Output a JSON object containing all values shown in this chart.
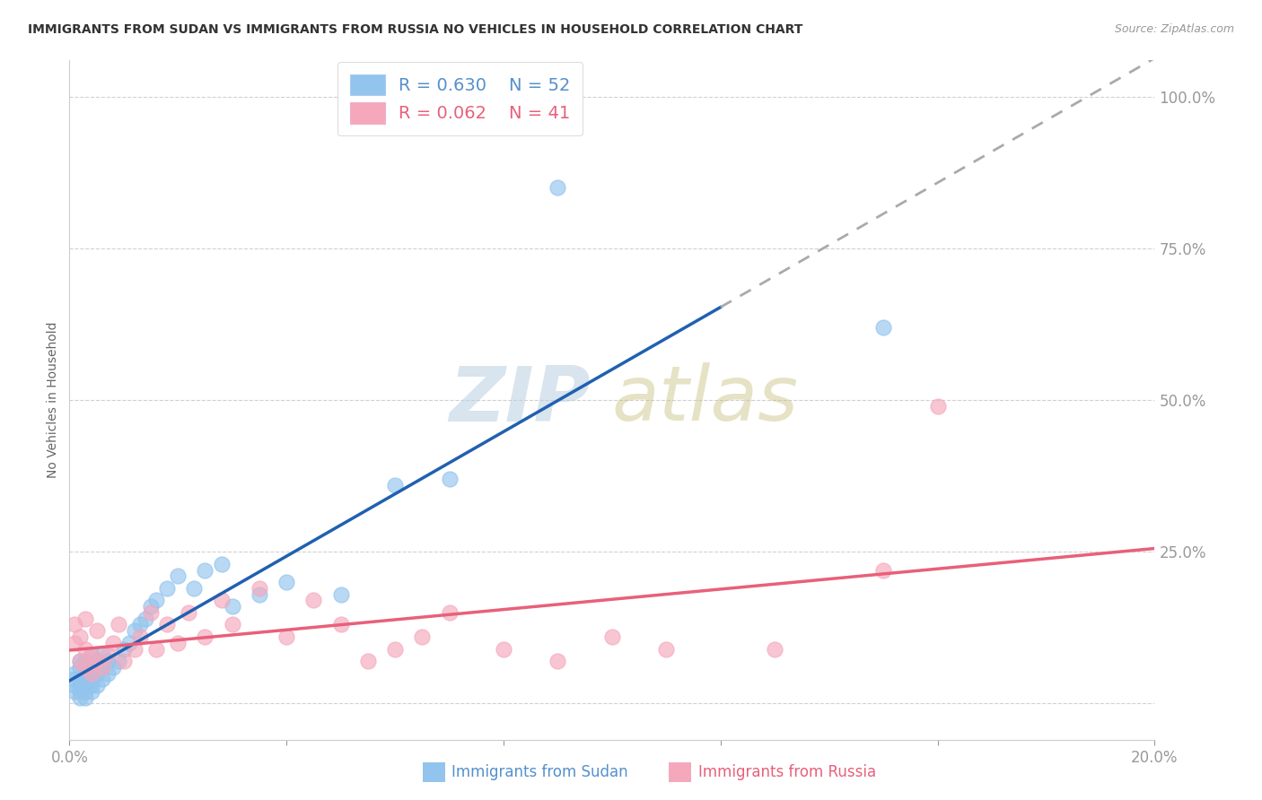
{
  "title": "IMMIGRANTS FROM SUDAN VS IMMIGRANTS FROM RUSSIA NO VEHICLES IN HOUSEHOLD CORRELATION CHART",
  "source": "Source: ZipAtlas.com",
  "xlabel_sudan": "Immigrants from Sudan",
  "xlabel_russia": "Immigrants from Russia",
  "ylabel": "No Vehicles in Household",
  "xmin": 0.0,
  "xmax": 0.2,
  "ymin": -0.06,
  "ymax": 1.06,
  "r_sudan": 0.63,
  "n_sudan": 52,
  "r_russia": 0.062,
  "n_russia": 41,
  "color_sudan": "#92C4ED",
  "color_russia": "#F5A8BC",
  "color_sudan_line": "#2060B0",
  "color_russia_line": "#E8607A",
  "color_dashed": "#AAAAAA",
  "axis_color": "#5590CC",
  "grid_color": "#CCCCCC",
  "title_color": "#333333",
  "sudan_x": [
    0.001,
    0.001,
    0.001,
    0.001,
    0.002,
    0.002,
    0.002,
    0.002,
    0.002,
    0.002,
    0.003,
    0.003,
    0.003,
    0.003,
    0.003,
    0.003,
    0.003,
    0.004,
    0.004,
    0.004,
    0.004,
    0.004,
    0.005,
    0.005,
    0.005,
    0.006,
    0.006,
    0.006,
    0.007,
    0.007,
    0.008,
    0.009,
    0.01,
    0.011,
    0.012,
    0.013,
    0.014,
    0.015,
    0.016,
    0.018,
    0.02,
    0.023,
    0.025,
    0.028,
    0.03,
    0.035,
    0.04,
    0.05,
    0.06,
    0.07,
    0.09,
    0.15
  ],
  "sudan_y": [
    0.02,
    0.03,
    0.04,
    0.05,
    0.01,
    0.02,
    0.03,
    0.04,
    0.06,
    0.07,
    0.01,
    0.02,
    0.03,
    0.04,
    0.05,
    0.06,
    0.07,
    0.02,
    0.03,
    0.04,
    0.05,
    0.08,
    0.03,
    0.05,
    0.07,
    0.04,
    0.06,
    0.08,
    0.05,
    0.07,
    0.06,
    0.07,
    0.09,
    0.1,
    0.12,
    0.13,
    0.14,
    0.16,
    0.17,
    0.19,
    0.21,
    0.19,
    0.22,
    0.23,
    0.16,
    0.18,
    0.2,
    0.18,
    0.36,
    0.37,
    0.85,
    0.62
  ],
  "russia_x": [
    0.001,
    0.001,
    0.002,
    0.002,
    0.003,
    0.003,
    0.003,
    0.004,
    0.004,
    0.005,
    0.005,
    0.006,
    0.007,
    0.008,
    0.009,
    0.01,
    0.012,
    0.013,
    0.015,
    0.016,
    0.018,
    0.02,
    0.022,
    0.025,
    0.028,
    0.03,
    0.035,
    0.04,
    0.045,
    0.05,
    0.055,
    0.06,
    0.065,
    0.07,
    0.08,
    0.09,
    0.1,
    0.11,
    0.13,
    0.15,
    0.16
  ],
  "russia_y": [
    0.1,
    0.13,
    0.07,
    0.11,
    0.06,
    0.09,
    0.14,
    0.05,
    0.08,
    0.07,
    0.12,
    0.06,
    0.08,
    0.1,
    0.13,
    0.07,
    0.09,
    0.11,
    0.15,
    0.09,
    0.13,
    0.1,
    0.15,
    0.11,
    0.17,
    0.13,
    0.19,
    0.11,
    0.17,
    0.13,
    0.07,
    0.09,
    0.11,
    0.15,
    0.09,
    0.07,
    0.11,
    0.09,
    0.09,
    0.22,
    0.49
  ]
}
